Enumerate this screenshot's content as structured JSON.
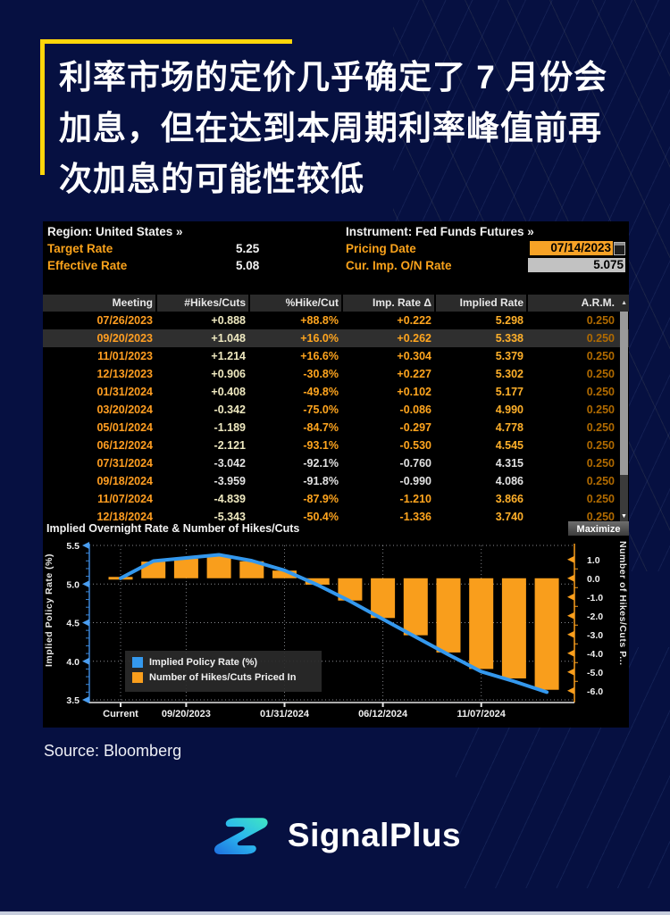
{
  "headline": {
    "lines": [
      "利率市场的定价几乎确定了 7 月份会",
      "加息，但在达到本周期利率峰值前再",
      "次加息的可能性较低"
    ]
  },
  "terminal": {
    "header": {
      "region_label": "Region: United States »",
      "instrument_label": "Instrument: Fed Funds Futures »",
      "target_rate_label": "Target Rate",
      "target_rate_value": "5.25",
      "effective_rate_label": "Effective Rate",
      "effective_rate_value": "5.08",
      "pricing_date_label": "Pricing Date",
      "pricing_date_value": "07/14/2023",
      "cur_imp_label": "Cur. Imp. O/N Rate",
      "cur_imp_value": "5.075"
    },
    "table": {
      "columns": [
        "Meeting",
        "#Hikes/Cuts",
        "%Hike/Cut",
        "Imp. Rate Δ",
        "Implied Rate",
        "A.R.M."
      ],
      "sort_indicator": "▲",
      "scroll_down_indicator": "▼",
      "selected_row": 1,
      "pale_rows": [
        8,
        9
      ],
      "rows": [
        [
          "07/26/2023",
          "+0.888",
          "+88.8%",
          "+0.222",
          "5.298",
          "0.250"
        ],
        [
          "09/20/2023",
          "+1.048",
          "+16.0%",
          "+0.262",
          "5.338",
          "0.250"
        ],
        [
          "11/01/2023",
          "+1.214",
          "+16.6%",
          "+0.304",
          "5.379",
          "0.250"
        ],
        [
          "12/13/2023",
          "+0.906",
          "-30.8%",
          "+0.227",
          "5.302",
          "0.250"
        ],
        [
          "01/31/2024",
          "+0.408",
          "-49.8%",
          "+0.102",
          "5.177",
          "0.250"
        ],
        [
          "03/20/2024",
          "-0.342",
          "-75.0%",
          "-0.086",
          "4.990",
          "0.250"
        ],
        [
          "05/01/2024",
          "-1.189",
          "-84.7%",
          "-0.297",
          "4.778",
          "0.250"
        ],
        [
          "06/12/2024",
          "-2.121",
          "-93.1%",
          "-0.530",
          "4.545",
          "0.250"
        ],
        [
          "07/31/2024",
          "-3.042",
          "-92.1%",
          "-0.760",
          "4.315",
          "0.250"
        ],
        [
          "09/18/2024",
          "-3.959",
          "-91.8%",
          "-0.990",
          "4.086",
          "0.250"
        ],
        [
          "11/07/2024",
          "-4.839",
          "-87.9%",
          "-1.210",
          "3.866",
          "0.250"
        ],
        [
          "12/18/2024",
          "-5.343",
          "-50.4%",
          "-1.336",
          "3.740",
          "0.250"
        ]
      ]
    }
  },
  "chart_data": {
    "type": "combo",
    "title": "Implied Overnight Rate & Number of Hikes/Cuts",
    "maximize_label": "Maximize",
    "left_axis": {
      "label": "Implied Policy Rate (%)",
      "ticks": [
        "5.5",
        "5.0",
        "4.5",
        "4.0",
        "3.5"
      ],
      "range": [
        3.5,
        5.5
      ]
    },
    "right_axis": {
      "label": "Number of Hikes/Cuts P...",
      "ticks": [
        "1.0",
        "0.0",
        "-1.0",
        "-2.0",
        "-3.0",
        "-4.0",
        "-5.0",
        "-6.0"
      ],
      "range": [
        -6.0,
        1.0
      ]
    },
    "categories": [
      "Current",
      "07/26/2023",
      "09/20/2023",
      "11/01/2023",
      "12/13/2023",
      "01/31/2024",
      "03/20/2024",
      "05/01/2024",
      "06/12/2024",
      "07/31/2024",
      "09/18/2024",
      "11/07/2024",
      "12/18/2024",
      ""
    ],
    "x_labels": [
      "Current",
      "09/20/2023",
      "01/31/2024",
      "06/12/2024",
      "11/07/2024"
    ],
    "x_label_indices": [
      0,
      2,
      5,
      8,
      11
    ],
    "series": [
      {
        "name": "Implied Policy Rate (%)",
        "type": "line",
        "color": "#3498ed",
        "values": [
          5.075,
          5.298,
          5.338,
          5.379,
          5.302,
          5.177,
          4.99,
          4.778,
          4.545,
          4.315,
          4.086,
          3.866,
          3.74,
          3.6
        ]
      },
      {
        "name": "Number of Hikes/Cuts Priced In",
        "type": "bar",
        "color": "#f99e1c",
        "values": [
          0,
          0.888,
          1.048,
          1.214,
          0.906,
          0.408,
          -0.342,
          -1.189,
          -2.121,
          -3.042,
          -3.959,
          -4.839,
          -5.343,
          -5.95
        ]
      }
    ],
    "legend": [
      "Implied Policy Rate (%)",
      "Number of Hikes/Cuts Priced In"
    ],
    "legend_position": "bottom-left",
    "grid": "dotted"
  },
  "source": "Source: Bloomberg",
  "brand": {
    "name": "SignalPlus"
  },
  "colors": {
    "page_bg": "#061041",
    "accent_yellow": "#ffd60a",
    "panel_bg": "#000000",
    "label_orange": "#f9a21b",
    "date_field_bg": "#f7a226",
    "rate_field_bg": "#c2c2c2",
    "table_date": "#ff9e21",
    "table_arm": "#b06a00",
    "bar_orange": "#f99e1c",
    "line_blue": "#3498ed"
  }
}
